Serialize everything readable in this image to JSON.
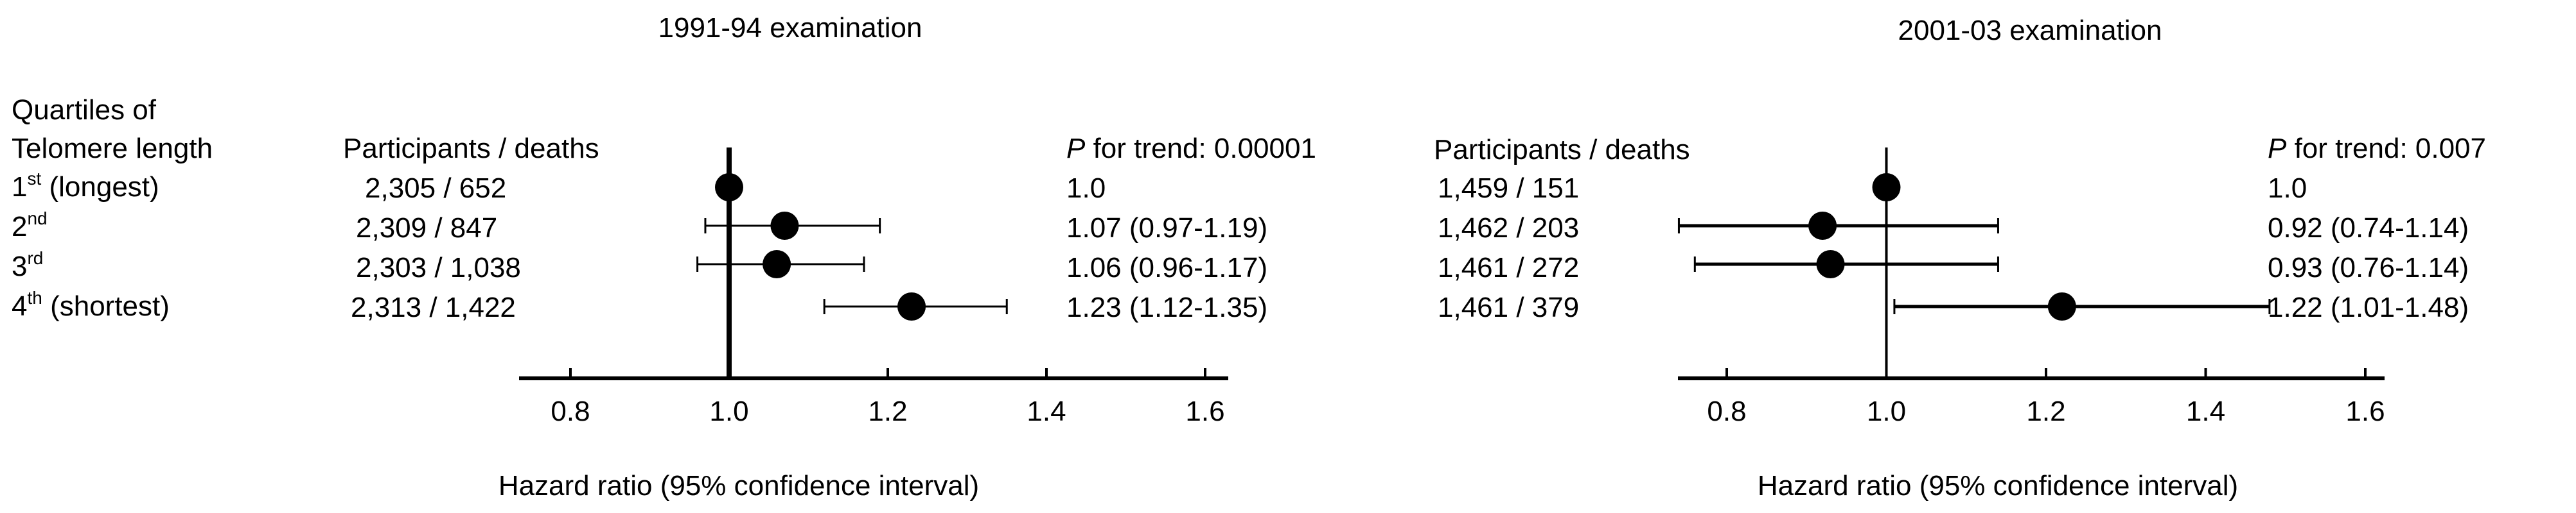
{
  "left_header": {
    "quartiles_line1": "Quartiles of",
    "quartiles_line2": "Telomere length"
  },
  "row_labels": [
    {
      "base": "1",
      "sup": "st",
      "rest": " (longest)"
    },
    {
      "base": "2",
      "sup": "nd",
      "rest": ""
    },
    {
      "base": "3",
      "sup": "rd",
      "rest": ""
    },
    {
      "base": "4",
      "sup": "th",
      "rest": " (shortest)"
    }
  ],
  "chart_data": [
    {
      "type": "forest",
      "title": "1991-94 examination",
      "xlabel": "Hazard ratio (95% confidence interval)",
      "xlim": [
        0.73,
        1.62
      ],
      "xticks": [
        0.8,
        1.0,
        1.2,
        1.4,
        1.6
      ],
      "xtick_labels": [
        "0.8",
        "1.0",
        "1.2",
        "1.4",
        "1.6"
      ],
      "reference_line": 1.0,
      "participants_header": "Participants / deaths",
      "trend_label": "P",
      "trend_text": " for trend: 0.00001",
      "rows": [
        {
          "participants_deaths": "2,305 / 652",
          "hr": 1.0,
          "low": null,
          "high": null,
          "hr_text": "1.0"
        },
        {
          "participants_deaths": "2,309 / 847",
          "hr": 1.07,
          "low": 0.97,
          "high": 1.19,
          "hr_text": "1.07 (0.97-1.19)"
        },
        {
          "participants_deaths": "2,303 / 1,038",
          "hr": 1.06,
          "low": 0.96,
          "high": 1.17,
          "hr_text": "1.06 (0.96-1.17)"
        },
        {
          "participants_deaths": "2,313 / 1,422",
          "hr": 1.23,
          "low": 1.12,
          "high": 1.35,
          "hr_text": "1.23 (1.12-1.35)"
        }
      ]
    },
    {
      "type": "forest",
      "title": "2001-03 examination",
      "xlabel": "Hazard ratio (95% confidence interval)",
      "xlim": [
        0.73,
        1.62
      ],
      "xticks": [
        0.8,
        1.0,
        1.2,
        1.4,
        1.6
      ],
      "xtick_labels": [
        "0.8",
        "1.0",
        "1.2",
        "1.4",
        "1.6"
      ],
      "reference_line": 1.0,
      "participants_header": "Participants / deaths",
      "trend_label": "P",
      "trend_text": " for trend: 0.007",
      "rows": [
        {
          "participants_deaths": "1,459 / 151",
          "hr": 1.0,
          "low": null,
          "high": null,
          "hr_text": "1.0"
        },
        {
          "participants_deaths": "1,462 / 203",
          "hr": 0.92,
          "low": 0.74,
          "high": 1.14,
          "hr_text": "0.92 (0.74-1.14)"
        },
        {
          "participants_deaths": "1,461 / 272",
          "hr": 0.93,
          "low": 0.76,
          "high": 1.14,
          "hr_text": "0.93 (0.76-1.14)"
        },
        {
          "participants_deaths": "1,461 / 379",
          "hr": 1.22,
          "low": 1.01,
          "high": 1.48,
          "hr_text": "1.22 (1.01-1.48)"
        }
      ]
    }
  ]
}
